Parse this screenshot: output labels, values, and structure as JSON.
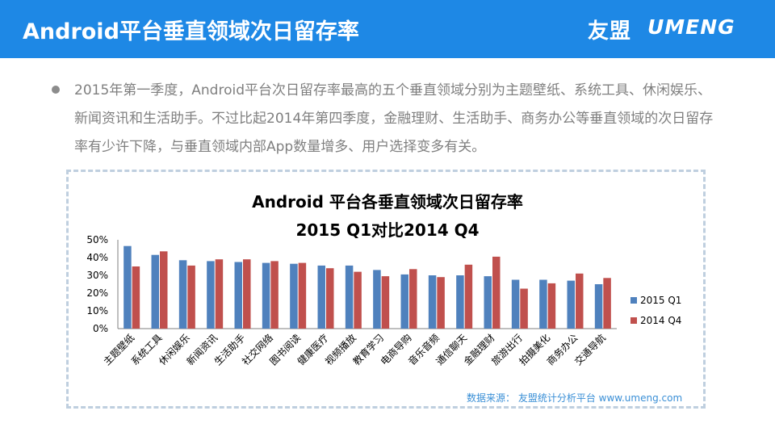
{
  "header": {
    "title": "Android平台垂直领域次日留存率",
    "logo_cn": "友盟",
    "logo_en": "UMENG"
  },
  "summary": "2015年第一季度，Android平台次日留存率最高的五个垂直领域分别为主题壁纸、系统工具、休闲娱乐、新闻资讯和生活助手。不过比起2014年第四季度，金融理财、生活助手、商务办公等垂直领域的次日留存率有少许下降，与垂直领域内部App数量增多、用户选择变多有关。",
  "chart_data": {
    "type": "bar",
    "title": "Android 平台各垂直领域次日留存率",
    "subtitle": "2015 Q1对比2014 Q4",
    "categories": [
      "主题壁纸",
      "系统工具",
      "休闲娱乐",
      "新闻资讯",
      "生活助手",
      "社交网络",
      "图书阅读",
      "健康医疗",
      "视频播放",
      "教育学习",
      "电商导购",
      "音乐音频",
      "通信聊天",
      "金融理财",
      "旅游出行",
      "拍摄美化",
      "商务办公",
      "交通导航"
    ],
    "series": [
      {
        "name": "2015 Q1",
        "color": "#4f81bd",
        "values": [
          46.5,
          41.5,
          38.5,
          38,
          37.5,
          37,
          36.5,
          35.5,
          35.5,
          33,
          30.5,
          30,
          30,
          29.5,
          27.5,
          27.5,
          27,
          25
        ]
      },
      {
        "name": "2014 Q4",
        "color": "#c0504d",
        "values": [
          35,
          43.5,
          35.5,
          39,
          39,
          38,
          37,
          34,
          32,
          29.5,
          33.5,
          29,
          36,
          40.5,
          22.5,
          25.5,
          31,
          28.5
        ]
      }
    ],
    "yticks": [
      "0%",
      "10%",
      "20%",
      "30%",
      "40%",
      "50%"
    ],
    "ylim": [
      0,
      50
    ],
    "legend_position": "right",
    "grid": false
  },
  "source": "数据来源： 友盟统计分析平台 www.umeng.com"
}
